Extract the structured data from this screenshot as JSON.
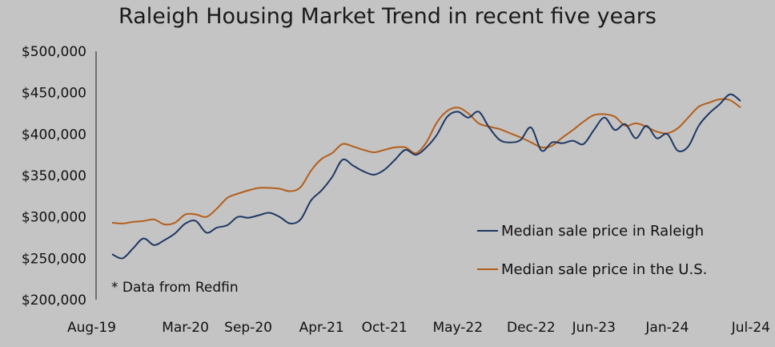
{
  "chart_data": {
    "type": "line",
    "title": "Raleigh Housing Market Trend in recent five years",
    "note": "* Data from Redfin",
    "xlabel": "",
    "ylabel": "",
    "ylim": [
      200000,
      500000
    ],
    "y_ticks": [
      "$200,000",
      "$250,000",
      "$300,000",
      "$350,000",
      "$400,000",
      "$450,000",
      "$500,000"
    ],
    "x_ticks": [
      "Aug-19",
      "Mar-20",
      "Sep-20",
      "Apr-21",
      "Oct-21",
      "May-22",
      "Dec-22",
      "Jun-23",
      "Jan-24",
      "Jul-24"
    ],
    "x_tick_month_index": [
      0,
      7,
      13,
      20,
      26,
      33,
      40,
      46,
      53,
      59
    ],
    "grid": false,
    "legend_position": "lower-right",
    "series": [
      {
        "name": "Median sale price in Raleigh",
        "color": "#1f3864",
        "values": [
          255000,
          250000,
          262000,
          274000,
          266000,
          272000,
          280000,
          292000,
          295000,
          281000,
          287000,
          290000,
          300000,
          299000,
          302000,
          305000,
          300000,
          292000,
          297000,
          320000,
          332000,
          348000,
          369000,
          362000,
          355000,
          351000,
          357000,
          369000,
          381000,
          375000,
          384000,
          399000,
          421000,
          427000,
          420000,
          427000,
          408000,
          393000,
          390000,
          393000,
          408000,
          380000,
          390000,
          389000,
          392000,
          388000,
          405000,
          420000,
          405000,
          412000,
          395000,
          410000,
          395000,
          400000,
          380000,
          385000,
          410000,
          425000,
          436000,
          448000,
          440000
        ]
      },
      {
        "name": "Median sale price in the U.S.",
        "color": "#b35e1b",
        "values": [
          293000,
          292000,
          294000,
          295000,
          297000,
          291000,
          293000,
          303000,
          303000,
          300000,
          310000,
          323000,
          328000,
          332000,
          335000,
          335000,
          334000,
          331000,
          336000,
          356000,
          370000,
          377000,
          388000,
          385000,
          381000,
          378000,
          381000,
          384000,
          384000,
          377000,
          390000,
          414000,
          428000,
          432000,
          425000,
          413000,
          409000,
          406000,
          401000,
          396000,
          390000,
          384000,
          386000,
          396000,
          405000,
          415000,
          423000,
          424000,
          421000,
          410000,
          413000,
          409000,
          403000,
          401000,
          407000,
          420000,
          433000,
          438000,
          442000,
          441000,
          432000
        ]
      }
    ]
  }
}
